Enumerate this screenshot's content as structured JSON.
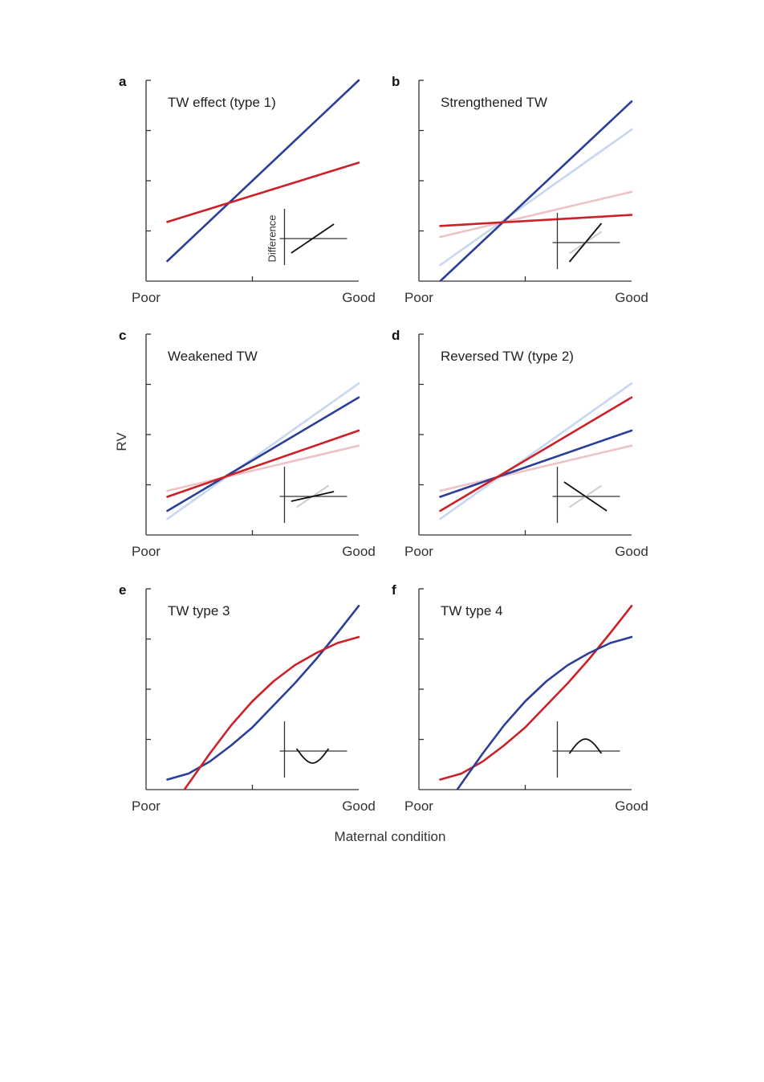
{
  "colors": {
    "blue": "#2b3f99",
    "red": "#cc2128",
    "blue_faded": "#c6d7ef",
    "red_faded": "#edc3c6",
    "axis": "#333333",
    "inset_faded": "#c8c8c8"
  },
  "figure": {
    "y_axis_label": "RV",
    "x_axis_label": "Maternal condition",
    "inset_y_label": "Difference"
  },
  "chart_data": [
    {
      "type": "line",
      "panel": "a",
      "title": "TW effect (type 1)",
      "x_tick_labels": [
        "Poor",
        "Good"
      ],
      "xlim": [
        0,
        1
      ],
      "ylim": [
        0,
        1
      ],
      "grid": false,
      "series": [
        {
          "color": "blue",
          "x": [
            0.1,
            1.0
          ],
          "y": [
            0.1,
            1.0
          ]
        },
        {
          "color": "red",
          "x": [
            0.1,
            1.0
          ],
          "y": [
            0.295,
            0.59
          ]
        }
      ],
      "inset": {
        "difference": [
          {
            "x": [
              -0.8,
              0.8
            ],
            "y": [
              -0.6,
              0.6
            ]
          }
        ]
      }
    },
    {
      "type": "line",
      "panel": "b",
      "title": "Strengthened TW",
      "x_tick_labels": [
        "Poor",
        "Good"
      ],
      "xlim": [
        0,
        1
      ],
      "ylim": [
        0,
        1
      ],
      "grid": false,
      "series": [
        {
          "color": "blue_faded",
          "x": [
            0.1,
            1.0
          ],
          "y": [
            0.08,
            0.755
          ]
        },
        {
          "color": "red_faded",
          "x": [
            0.1,
            1.0
          ],
          "y": [
            0.22,
            0.445
          ]
        },
        {
          "color": "blue",
          "x": [
            0.1,
            1.0
          ],
          "y": [
            0.0,
            0.895
          ]
        },
        {
          "color": "red",
          "x": [
            0.1,
            1.0
          ],
          "y": [
            0.275,
            0.33
          ]
        }
      ],
      "inset": {
        "reference": [
          {
            "x": [
              -0.6,
              0.6
            ],
            "y": [
              -0.45,
              0.45
            ]
          }
        ],
        "difference": [
          {
            "x": [
              -0.6,
              0.6
            ],
            "y": [
              -0.8,
              0.8
            ]
          }
        ]
      }
    },
    {
      "type": "line",
      "panel": "c",
      "title": "Weakened TW",
      "x_tick_labels": [
        "Poor",
        "Good"
      ],
      "xlim": [
        0,
        1
      ],
      "ylim": [
        0,
        1
      ],
      "grid": false,
      "series": [
        {
          "color": "blue_faded",
          "x": [
            0.1,
            1.0
          ],
          "y": [
            0.08,
            0.755
          ]
        },
        {
          "color": "red_faded",
          "x": [
            0.1,
            1.0
          ],
          "y": [
            0.22,
            0.445
          ]
        },
        {
          "color": "blue",
          "x": [
            0.1,
            1.0
          ],
          "y": [
            0.12,
            0.685
          ]
        },
        {
          "color": "red",
          "x": [
            0.1,
            1.0
          ],
          "y": [
            0.19,
            0.52
          ]
        }
      ],
      "inset": {
        "reference": [
          {
            "x": [
              -0.6,
              0.6
            ],
            "y": [
              -0.45,
              0.45
            ]
          }
        ],
        "difference": [
          {
            "x": [
              -0.8,
              0.8
            ],
            "y": [
              -0.2,
              0.2
            ]
          }
        ]
      }
    },
    {
      "type": "line",
      "panel": "d",
      "title": "Reversed TW (type 2)",
      "x_tick_labels": [
        "Poor",
        "Good"
      ],
      "xlim": [
        0,
        1
      ],
      "ylim": [
        0,
        1
      ],
      "grid": false,
      "series": [
        {
          "color": "blue_faded",
          "x": [
            0.1,
            1.0
          ],
          "y": [
            0.08,
            0.755
          ]
        },
        {
          "color": "red_faded",
          "x": [
            0.1,
            1.0
          ],
          "y": [
            0.22,
            0.445
          ]
        },
        {
          "color": "blue",
          "x": [
            0.1,
            1.0
          ],
          "y": [
            0.19,
            0.52
          ]
        },
        {
          "color": "red",
          "x": [
            0.1,
            1.0
          ],
          "y": [
            0.12,
            0.685
          ]
        }
      ],
      "inset": {
        "reference": [
          {
            "x": [
              -0.6,
              0.6
            ],
            "y": [
              -0.45,
              0.45
            ]
          }
        ],
        "difference": [
          {
            "x": [
              -0.8,
              0.8
            ],
            "y": [
              0.6,
              -0.6
            ]
          }
        ]
      }
    },
    {
      "type": "line",
      "panel": "e",
      "title": "TW type 3",
      "x_tick_labels": [
        "Poor",
        "Good"
      ],
      "xlim": [
        0,
        1
      ],
      "ylim": [
        0,
        1
      ],
      "grid": false,
      "series": [
        {
          "color": "blue",
          "x": [
            0.1,
            0.2,
            0.3,
            0.4,
            0.5,
            0.6,
            0.7,
            0.8,
            0.9,
            1.0
          ],
          "y": [
            0.05,
            0.08,
            0.14,
            0.22,
            0.31,
            0.42,
            0.53,
            0.65,
            0.78,
            0.915
          ]
        },
        {
          "color": "red",
          "x": [
            0.18,
            0.3,
            0.4,
            0.5,
            0.6,
            0.7,
            0.8,
            0.9,
            1.0
          ],
          "y": [
            0.0,
            0.18,
            0.32,
            0.44,
            0.54,
            0.62,
            0.68,
            0.73,
            0.76
          ]
        }
      ],
      "inset": {
        "difference": [
          {
            "x": [
              -0.6,
              -0.3,
              0.0,
              0.3,
              0.6
            ],
            "y": [
              0.1,
              -0.35,
              -0.55,
              -0.35,
              0.1
            ]
          }
        ]
      }
    },
    {
      "type": "line",
      "panel": "f",
      "title": "TW type 4",
      "x_tick_labels": [
        "Poor",
        "Good"
      ],
      "xlim": [
        0,
        1
      ],
      "ylim": [
        0,
        1
      ],
      "grid": false,
      "series": [
        {
          "color": "red",
          "x": [
            0.1,
            0.2,
            0.3,
            0.4,
            0.5,
            0.6,
            0.7,
            0.8,
            0.9,
            1.0
          ],
          "y": [
            0.05,
            0.08,
            0.14,
            0.22,
            0.31,
            0.42,
            0.53,
            0.65,
            0.78,
            0.915
          ]
        },
        {
          "color": "blue",
          "x": [
            0.18,
            0.3,
            0.4,
            0.5,
            0.6,
            0.7,
            0.8,
            0.9,
            1.0
          ],
          "y": [
            0.0,
            0.18,
            0.32,
            0.44,
            0.54,
            0.62,
            0.68,
            0.73,
            0.76
          ]
        }
      ],
      "inset": {
        "difference": [
          {
            "x": [
              -0.6,
              -0.3,
              0.0,
              0.3,
              0.6
            ],
            "y": [
              -0.1,
              0.35,
              0.55,
              0.35,
              -0.1
            ]
          }
        ]
      }
    }
  ]
}
